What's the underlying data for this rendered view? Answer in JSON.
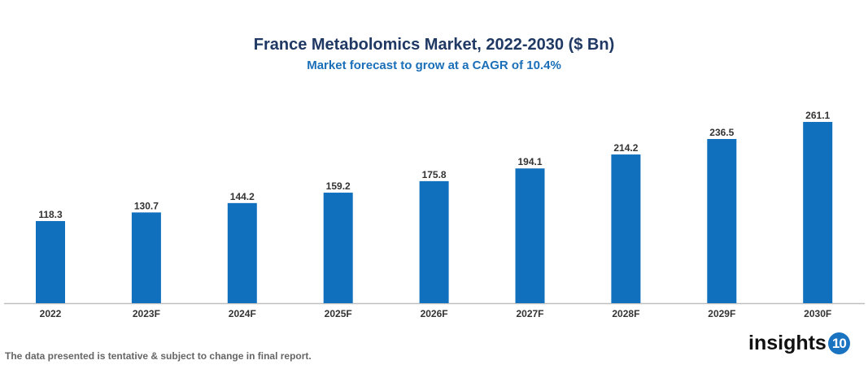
{
  "chart_data": {
    "type": "bar",
    "title": "France Metabolomics Market, 2022-2030 ($ Bn)",
    "subtitle": "Market forecast to grow at a CAGR of 10.4%",
    "categories": [
      "2022",
      "2023F",
      "2024F",
      "2025F",
      "2026F",
      "2027F",
      "2028F",
      "2029F",
      "2030F"
    ],
    "values": [
      118.3,
      130.7,
      144.2,
      159.2,
      175.8,
      194.1,
      214.2,
      236.5,
      261.1
    ],
    "data_labels": [
      "118.3",
      "130.7",
      "144.2",
      "159.2",
      "175.8",
      "194.1",
      "214.2",
      "236.5",
      "261.1"
    ],
    "xlabel": "",
    "ylabel": "",
    "ylim": [
      0,
      270
    ],
    "grid": false,
    "legend": "none",
    "bar_color": "#1170BD"
  },
  "footer": {
    "note": "The data presented is tentative & subject to change in final report."
  },
  "logo": {
    "text": "insights",
    "badge": "10"
  }
}
